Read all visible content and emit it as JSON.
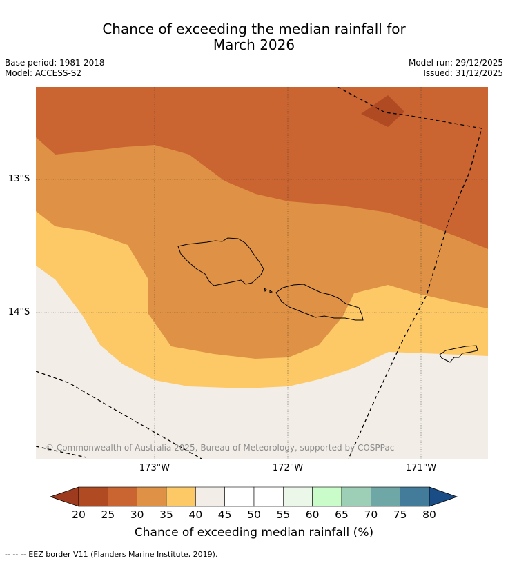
{
  "title_line1": "Chance of exceeding the median rainfall for",
  "title_line2": "March 2026",
  "base_period": "Base period: 1981-2018",
  "model": "Model: ACCESS-S2",
  "model_run": "Model run: 29/12/2025",
  "issued": "Issued: 31/12/2025",
  "lat_labels": [
    "13°S",
    "14°S"
  ],
  "lon_labels": [
    "173°W",
    "172°W",
    "171°W"
  ],
  "copyright": "© Commonwealth of Australia 2025, Bureau of Meteorology, supported by COSPPac",
  "colorbar": {
    "ticks": [
      "20",
      "25",
      "30",
      "35",
      "40",
      "45",
      "50",
      "55",
      "60",
      "65",
      "70",
      "75",
      "80"
    ],
    "colors": [
      "#b04a22",
      "#ca6532",
      "#df9245",
      "#fdc967",
      "#f2ede7",
      "#ffffff",
      "#ffffff",
      "#eaf7e9",
      "#c9fcc9",
      "#9ccfb5",
      "#6fa6a6",
      "#437c9b"
    ],
    "under_color": "#9e3b1f",
    "over_color": "#1a4d85",
    "label": "Chance of exceeding median rainfall (%)"
  },
  "legend_footnote": "--  --  -- EEZ border V11 (Flanders Marine Institute, 2019).",
  "colors": {
    "band_lt25": "#b04a22",
    "band_25_30": "#ca6532",
    "band_30_35": "#df9245",
    "band_35_40": "#fdc967",
    "band_40_45": "#f2ede7"
  }
}
